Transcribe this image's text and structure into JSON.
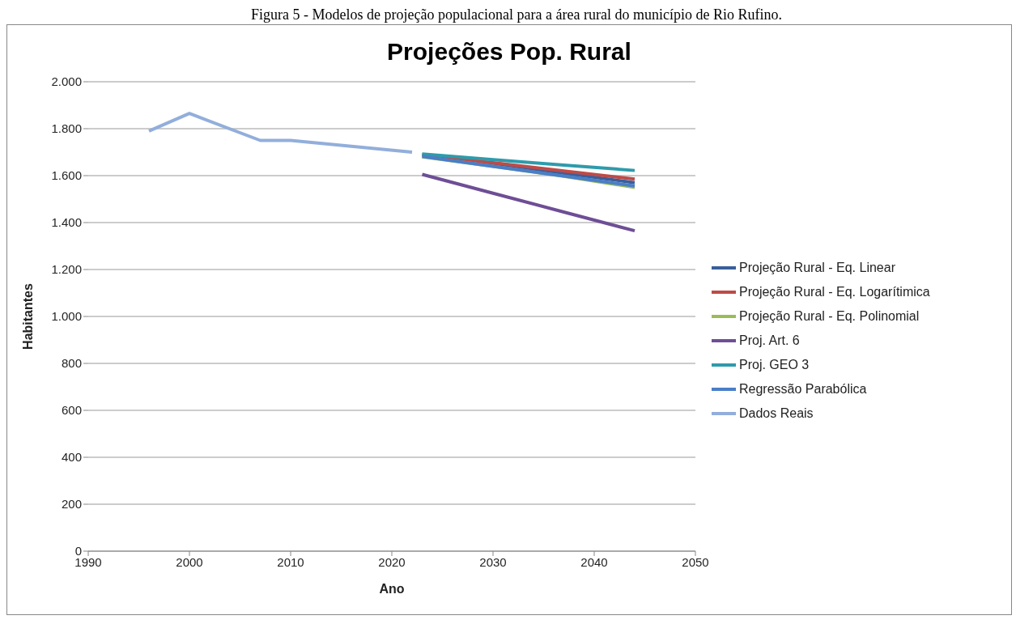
{
  "chart_data": {
    "type": "line",
    "title": "Projeções Pop. Rural",
    "xlabel": "Ano",
    "ylabel": "Habitantes",
    "annotations": [
      "Figura 5 - Modelos de projeção populacional para a área rural do município de Rio Rufino."
    ],
    "xlim": [
      1990,
      2050
    ],
    "xticks": [
      1990,
      2000,
      2010,
      2020,
      2030,
      2040,
      2050
    ],
    "ylim": [
      0,
      2000
    ],
    "yticks": [
      0,
      200,
      400,
      600,
      800,
      {
        "value": 1000,
        "label": "1.000"
      },
      {
        "value": 1200,
        "label": "1.200"
      },
      {
        "value": 1400,
        "label": "1.400"
      },
      {
        "value": 1600,
        "label": "1.600"
      },
      {
        "value": 1800,
        "label": "1.800"
      },
      {
        "value": 2000,
        "label": "2.000"
      }
    ],
    "grid": "y",
    "legend": "right",
    "marker": "none",
    "line_style": "solid",
    "series": [
      {
        "name": "Projeção Rural - Eq. Linear",
        "color": "#3a5f9a",
        "x": [
          2023,
          2030,
          2037,
          2044
        ],
        "values": [
          1690,
          1650,
          1610,
          1570
        ]
      },
      {
        "name": "Projeção Rural - Eq. Logarítimica",
        "color": "#be4b48",
        "x": [
          2023,
          2030,
          2037,
          2044
        ],
        "values": [
          1685,
          1655,
          1620,
          1585
        ]
      },
      {
        "name": "Projeção Rural - Eq. Polinomial",
        "color": "#9bbb59",
        "x": [
          2023,
          2030,
          2037,
          2044
        ],
        "values": [
          1680,
          1640,
          1597,
          1550
        ]
      },
      {
        "name": "Proj. Art. 6",
        "color": "#6e4e96",
        "x": [
          2023,
          2030,
          2037,
          2044
        ],
        "values": [
          1605,
          1525,
          1445,
          1365
        ]
      },
      {
        "name": "Proj. GEO 3",
        "color": "#2e9bab",
        "x": [
          2023,
          2030,
          2037,
          2044
        ],
        "values": [
          1692,
          1668,
          1645,
          1622
        ]
      },
      {
        "name": "Regressão Parabólica",
        "color": "#4a7ec8",
        "x": [
          2023,
          2030,
          2037,
          2044
        ],
        "values": [
          1682,
          1640,
          1598,
          1556
        ]
      },
      {
        "name": "Dados Reais",
        "color": "#92aedb",
        "x": [
          1996,
          2000,
          2007,
          2010,
          2022
        ],
        "values": [
          1790,
          1865,
          1750,
          1750,
          1700
        ]
      }
    ]
  }
}
